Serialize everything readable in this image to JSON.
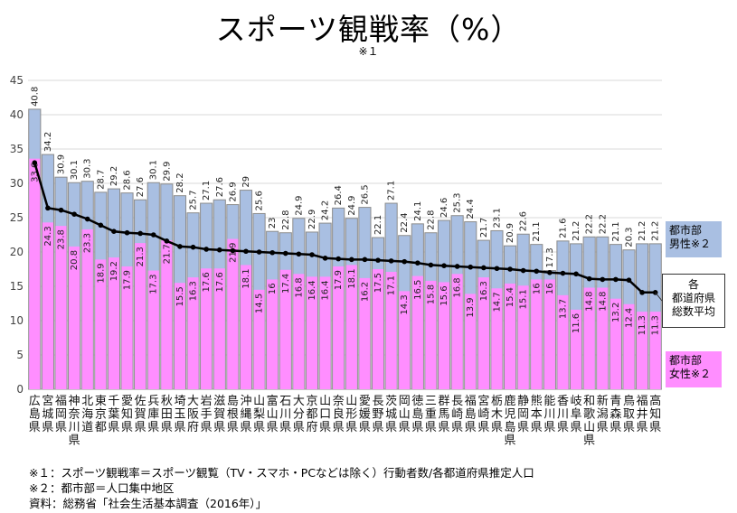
{
  "chart_data": {
    "type": "bar",
    "title": "スポーツ観戦率（%）",
    "title_note": "※１",
    "ylim": [
      0,
      45
    ],
    "yticks": [
      "0",
      "5",
      "10",
      "15",
      "20",
      "25",
      "30",
      "35",
      "40",
      "45"
    ],
    "categories": [
      [
        "広",
        "島",
        "県"
      ],
      [
        "宮",
        "城",
        "県"
      ],
      [
        "福",
        "岡",
        "県"
      ],
      [
        "神",
        "奈",
        "川",
        "県"
      ],
      [
        "北",
        "海",
        "道"
      ],
      [
        "東",
        "京",
        "都"
      ],
      [
        "千",
        "葉",
        "県"
      ],
      [
        "愛",
        "知",
        "県"
      ],
      [
        "佐",
        "賀",
        "県"
      ],
      [
        "兵",
        "庫",
        "県"
      ],
      [
        "秋",
        "田",
        "県"
      ],
      [
        "埼",
        "玉",
        "県"
      ],
      [
        "大",
        "阪",
        "府"
      ],
      [
        "岩",
        "手",
        "県"
      ],
      [
        "滋",
        "賀",
        "県"
      ],
      [
        "島",
        "根",
        "県"
      ],
      [
        "沖",
        "縄",
        "県"
      ],
      [
        "山",
        "梨",
        "県"
      ],
      [
        "富",
        "山",
        "県"
      ],
      [
        "石",
        "川",
        "県"
      ],
      [
        "大",
        "分",
        "県"
      ],
      [
        "京",
        "都",
        "府"
      ],
      [
        "山",
        "口",
        "県"
      ],
      [
        "奈",
        "良",
        "県"
      ],
      [
        "山",
        "形",
        "県"
      ],
      [
        "愛",
        "媛",
        "県"
      ],
      [
        "長",
        "野",
        "県"
      ],
      [
        "茨",
        "城",
        "県"
      ],
      [
        "岡",
        "山",
        "県"
      ],
      [
        "徳",
        "島",
        "県"
      ],
      [
        "三",
        "重",
        "県"
      ],
      [
        "群",
        "馬",
        "県"
      ],
      [
        "長",
        "崎",
        "県"
      ],
      [
        "福",
        "島",
        "県"
      ],
      [
        "宮",
        "崎",
        "県"
      ],
      [
        "栃",
        "木",
        "県"
      ],
      [
        "鹿",
        "児",
        "島",
        "県"
      ],
      [
        "静",
        "岡",
        "県"
      ],
      [
        "熊",
        "本",
        "県"
      ],
      [
        "能",
        "川",
        "県"
      ],
      [
        "香",
        "川",
        "県"
      ],
      [
        "岐",
        "阜",
        "県"
      ],
      [
        "和",
        "歌",
        "山",
        "県"
      ],
      [
        "新",
        "潟",
        "県"
      ],
      [
        "青",
        "森",
        "県"
      ],
      [
        "鳥",
        "取",
        "県"
      ],
      [
        "福",
        "井",
        "県"
      ],
      [
        "高",
        "知",
        "県"
      ]
    ],
    "series": [
      {
        "name": "都市部男性※２",
        "color": "#a9bfe2",
        "values": [
          40.8,
          34.2,
          30.9,
          30.1,
          30.3,
          28.7,
          29.2,
          28.6,
          27.6,
          30.1,
          29.9,
          28.2,
          25.7,
          27.1,
          27.6,
          26.9,
          29,
          25.6,
          23,
          22.8,
          24.9,
          22.9,
          24.2,
          26.4,
          24.9,
          26.5,
          22.1,
          27.1,
          22.4,
          24.1,
          22.8,
          24.6,
          25.3,
          24.4,
          21.7,
          23.1,
          20.9,
          22.6,
          21.1,
          17.3,
          21.6,
          21.2,
          22.2,
          22.2,
          21.1,
          20.3,
          21.2,
          21.2
        ]
      },
      {
        "name": "都市部女性※２",
        "color": "#ff8eff",
        "values": [
          33.6,
          24.3,
          23.8,
          20.8,
          23.3,
          18.9,
          19.2,
          17.9,
          21.3,
          17.3,
          21.7,
          15.5,
          16.3,
          17.6,
          17.6,
          21.9,
          18.1,
          14.5,
          16,
          17.4,
          16.8,
          16.4,
          16.4,
          17.9,
          18.1,
          16.2,
          17.5,
          17.1,
          14.3,
          16.5,
          15.8,
          15.6,
          16.8,
          13.9,
          16.3,
          14.7,
          15.4,
          15.1,
          16,
          16,
          13.7,
          11.6,
          14.8,
          14.8,
          13.2,
          12.4,
          11.3,
          11.3
        ]
      },
      {
        "name": "各都道府県総数平均",
        "color": "#000000",
        "values": [
          33,
          26.4,
          26.1,
          25.5,
          24.8,
          23.9,
          23,
          22.8,
          22.7,
          22.5,
          21.6,
          20.8,
          20.7,
          20.4,
          20.3,
          20.2,
          20.1,
          20,
          19.9,
          19.8,
          19.7,
          19.6,
          19.1,
          19,
          18.9,
          18.9,
          18.8,
          18.7,
          18.6,
          18.4,
          18.1,
          18,
          17.9,
          17.8,
          17.7,
          17.6,
          17.5,
          17.3,
          17.2,
          17,
          16.9,
          16.8,
          16.1,
          16,
          16,
          15.9,
          14.1,
          14.1
        ]
      }
    ],
    "legend": {
      "male": [
        "都市部",
        "男性※２"
      ],
      "avg": [
        "各",
        "都道府県",
        "総数平均"
      ],
      "female": [
        "都市部",
        "女性※２"
      ]
    },
    "legend_placement": "right"
  },
  "footnotes": [
    "※１：スポーツ観戦率＝スポーツ観覧（TV・スマホ・PCなどは除く）行動者数/各都道府県推定人口",
    "※２：都市部＝人口集中地区",
    "資料：総務省「社会生活基本調査（2016年）」"
  ]
}
